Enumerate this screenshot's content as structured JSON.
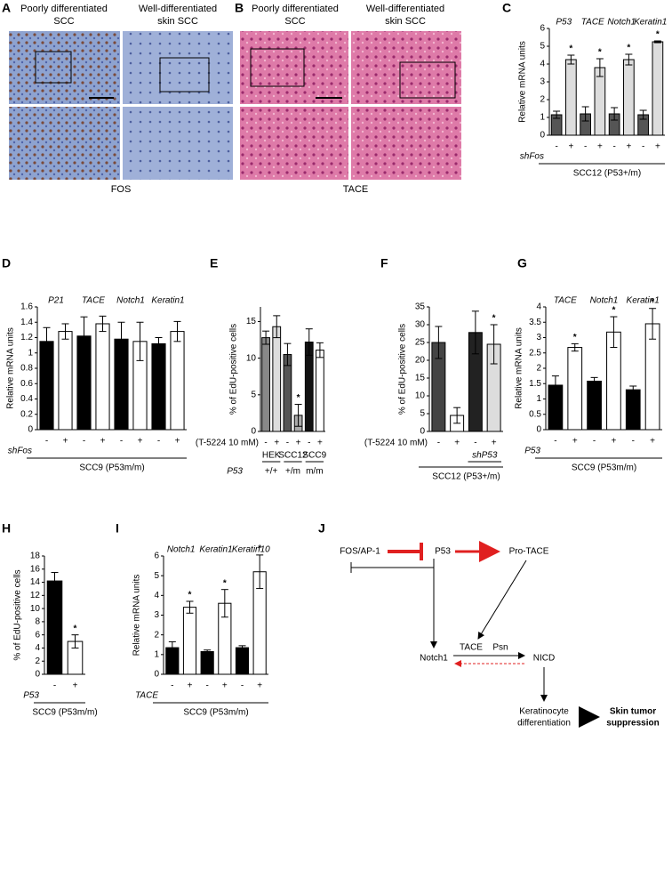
{
  "panel_labels": [
    "A",
    "B",
    "C",
    "D",
    "E",
    "F",
    "G",
    "H",
    "I",
    "J"
  ],
  "image_panels": [
    {
      "titles": [
        [
          "Poorly differentiated",
          "SCC"
        ],
        [
          "Well-differentiated",
          "skin SCC"
        ]
      ],
      "caption": "FOS"
    },
    {
      "titles": [
        [
          "Poorly differentiated",
          "SCC"
        ],
        [
          "Well-differentiated",
          "skin SCC"
        ]
      ],
      "caption": "TACE"
    }
  ],
  "chart_data": [
    {
      "type": "bar",
      "ylabel": "Relative mRNA units",
      "ylim": [
        0,
        6
      ],
      "yticks": [
        0,
        1,
        2,
        3,
        4,
        5,
        6
      ],
      "group_labels": [
        "P53",
        "TACE",
        "Notch1",
        "Keratin1"
      ],
      "categories": [
        "-",
        "+",
        "-",
        "+",
        "-",
        "+",
        "-",
        "+"
      ],
      "values": [
        1.15,
        4.25,
        1.2,
        3.8,
        1.2,
        4.25,
        1.15,
        5.25
      ],
      "errors": [
        0.2,
        0.25,
        0.4,
        0.5,
        0.35,
        0.3,
        0.25,
        0.05
      ],
      "colors": [
        "#555555",
        "#dddddd",
        "#555555",
        "#dddddd",
        "#555555",
        "#dddddd",
        "#555555",
        "#dddddd"
      ],
      "stars": [
        null,
        "*",
        null,
        "*",
        null,
        "*",
        null,
        "*"
      ],
      "row_label": "shFos",
      "cell_line": "SCC12 (P53+/m)"
    },
    {
      "type": "bar",
      "ylabel": "Relative mRNA units",
      "ylim": [
        0,
        1.6
      ],
      "yticks": [
        0,
        0.2,
        0.4,
        0.6,
        0.8,
        1,
        1.2,
        1.4,
        1.6
      ],
      "group_labels": [
        "P21",
        "TACE",
        "Notch1",
        "Keratin1"
      ],
      "categories": [
        "-",
        "+",
        "-",
        "+",
        "-",
        "+",
        "-",
        "+"
      ],
      "values": [
        1.15,
        1.28,
        1.22,
        1.38,
        1.18,
        1.15,
        1.12,
        1.28
      ],
      "errors": [
        0.18,
        0.1,
        0.25,
        0.1,
        0.22,
        0.25,
        0.08,
        0.13
      ],
      "colors": [
        "#000000",
        "#ffffff",
        "#000000",
        "#ffffff",
        "#000000",
        "#ffffff",
        "#000000",
        "#ffffff"
      ],
      "stars": [
        null,
        null,
        null,
        null,
        null,
        null,
        null,
        null
      ],
      "row_label": "shFos",
      "cell_line": "SCC9 (P53m/m)"
    },
    {
      "type": "bar",
      "ylabel": "% of EdU-positive cells",
      "ylim": [
        0,
        17
      ],
      "yticks": [
        0,
        5,
        10,
        15
      ],
      "categories": [
        "-",
        "+",
        "-",
        "+",
        "-",
        "+"
      ],
      "values": [
        12.8,
        14.3,
        10.5,
        2.2,
        12.2,
        11.1
      ],
      "errors": [
        0.9,
        1.5,
        1.5,
        1.5,
        1.8,
        1
      ],
      "colors": [
        "#888888",
        "#dddddd",
        "#555555",
        "#aaaaaa",
        "#111111",
        "#ffffff"
      ],
      "stars": [
        null,
        null,
        null,
        "*",
        null,
        null
      ],
      "treatment_label": "(T-5224 10 mM)",
      "bottom_group_labels": [
        "HEK",
        "SCC12",
        "SCC9"
      ],
      "genotype_row_label": "P53",
      "genotype_labels": [
        "+/+",
        "+/m",
        "m/m"
      ]
    },
    {
      "type": "bar",
      "ylabel": "% of EdU-positive cells",
      "ylim": [
        0,
        35
      ],
      "yticks": [
        0,
        5,
        10,
        15,
        20,
        25,
        30,
        35
      ],
      "categories": [
        "-",
        "+",
        "-",
        "+"
      ],
      "values": [
        25,
        4.5,
        27.8,
        24.5
      ],
      "errors": [
        4.5,
        2.2,
        6,
        5.5
      ],
      "colors": [
        "#444444",
        "#ffffff",
        "#222222",
        "#dddddd"
      ],
      "stars": [
        null,
        null,
        null,
        "*"
      ],
      "treatment_label": "(T-5224 10 mM)",
      "bottom_group_labels": [
        null,
        "shP53"
      ],
      "cell_line": "SCC12 (P53+/m)"
    },
    {
      "type": "bar",
      "ylabel": "Relative mRNA units",
      "ylim": [
        0,
        4
      ],
      "yticks": [
        0,
        0.5,
        1,
        1.5,
        2,
        2.5,
        3,
        3.5,
        4
      ],
      "group_labels": [
        "TACE",
        "Notch1",
        "Keratin1"
      ],
      "categories": [
        "-",
        "+",
        "-",
        "+",
        "-",
        "+"
      ],
      "values": [
        1.45,
        2.68,
        1.58,
        3.18,
        1.3,
        3.45
      ],
      "errors": [
        0.3,
        0.12,
        0.12,
        0.5,
        0.12,
        0.5
      ],
      "colors": [
        "#000000",
        "#ffffff",
        "#000000",
        "#ffffff",
        "#000000",
        "#ffffff"
      ],
      "stars": [
        null,
        "*",
        null,
        "*",
        null,
        "*"
      ],
      "row_label": "P53",
      "cell_line": "SCC9 (P53m/m)"
    },
    {
      "type": "bar",
      "ylabel": "% of EdU-positive cells",
      "ylim": [
        0,
        18
      ],
      "yticks": [
        0,
        2,
        4,
        6,
        8,
        10,
        12,
        14,
        16,
        18
      ],
      "categories": [
        "-",
        "+"
      ],
      "values": [
        14.2,
        5
      ],
      "errors": [
        1.3,
        1
      ],
      "colors": [
        "#000000",
        "#ffffff"
      ],
      "stars": [
        null,
        "*"
      ],
      "row_label": "P53",
      "cell_line": "SCC9 (P53m/m)"
    },
    {
      "type": "bar",
      "ylabel": "Relative mRNA units",
      "ylim": [
        0,
        6
      ],
      "yticks": [
        0,
        1,
        2,
        3,
        4,
        5,
        6
      ],
      "group_labels": [
        "Notch1",
        "Keratin1",
        "Keratin10"
      ],
      "categories": [
        "-",
        "+",
        "-",
        "+",
        "-",
        "+"
      ],
      "values": [
        1.35,
        3.4,
        1.15,
        3.6,
        1.35,
        5.2
      ],
      "errors": [
        0.3,
        0.3,
        0.08,
        0.7,
        0.1,
        0.85
      ],
      "colors": [
        "#000000",
        "#ffffff",
        "#000000",
        "#ffffff",
        "#000000",
        "#ffffff"
      ],
      "stars": [
        null,
        "*",
        null,
        "*",
        null,
        "*"
      ],
      "row_label": "TACE",
      "cell_line": "SCC9 (P53m/m)"
    }
  ],
  "diagram": {
    "nodes": [
      "FOS/AP-1",
      "P53",
      "Pro-TACE",
      "Notch1",
      "TACE",
      "Psn",
      "NICD",
      [
        "Keratinocyte",
        "differentiation"
      ],
      [
        "Skin tumor",
        "suppression"
      ]
    ]
  }
}
